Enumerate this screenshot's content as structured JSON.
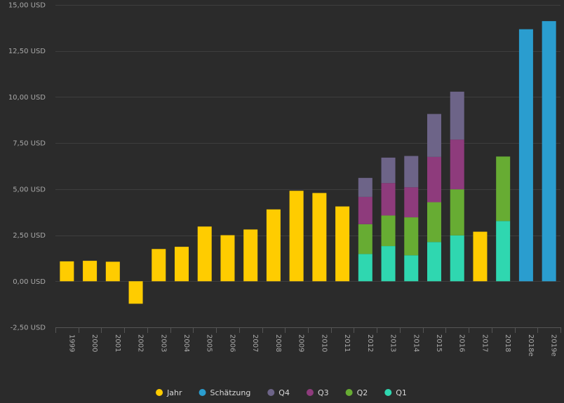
{
  "chart_data": {
    "type": "bar",
    "stacked": true,
    "categories": [
      "1999",
      "2000",
      "2001",
      "2002",
      "2003",
      "2004",
      "2005",
      "2006",
      "2007",
      "2008",
      "2009",
      "2010",
      "2011",
      "2012",
      "2013",
      "2014",
      "2015",
      "2016",
      "2017",
      "2018",
      "2018e",
      "2019e"
    ],
    "ylim": [
      -2.5,
      15
    ],
    "yticks": [
      -2.5,
      0,
      2.5,
      5,
      7.5,
      10,
      12.5,
      15
    ],
    "ytick_labels": [
      "-2,50 USD",
      "0,00 USD",
      "2,50 USD",
      "5,00 USD",
      "7,50 USD",
      "10,00 USD",
      "12,50 USD",
      "15,00 USD"
    ],
    "grid": true,
    "legend_position": "bottom",
    "series": [
      {
        "name": "Jahr",
        "color": "#ffcc00",
        "values": [
          1.08,
          1.11,
          1.06,
          -1.22,
          1.75,
          1.87,
          2.97,
          2.5,
          2.81,
          3.9,
          4.91,
          4.79,
          4.06,
          null,
          null,
          null,
          null,
          null,
          2.69,
          null,
          null,
          null
        ]
      },
      {
        "name": "Schätzung",
        "color": "#2a9dcf",
        "values": [
          null,
          null,
          null,
          null,
          null,
          null,
          null,
          null,
          null,
          null,
          null,
          null,
          null,
          null,
          null,
          null,
          null,
          null,
          null,
          null,
          13.68,
          14.12
        ]
      },
      {
        "name": "Q4",
        "color": "#6d6488",
        "values": [
          null,
          null,
          null,
          null,
          null,
          null,
          null,
          null,
          null,
          null,
          null,
          null,
          null,
          1.03,
          1.38,
          1.7,
          2.33,
          2.6,
          null,
          null,
          null,
          null
        ]
      },
      {
        "name": "Q3",
        "color": "#8e3b7c",
        "values": [
          null,
          null,
          null,
          null,
          null,
          null,
          null,
          null,
          null,
          null,
          null,
          null,
          null,
          1.48,
          1.76,
          1.63,
          2.46,
          2.7,
          null,
          null,
          null,
          null
        ]
      },
      {
        "name": "Q2",
        "color": "#67ac33",
        "values": [
          null,
          null,
          null,
          null,
          null,
          null,
          null,
          null,
          null,
          null,
          null,
          null,
          null,
          1.62,
          1.66,
          2.06,
          2.16,
          2.5,
          null,
          3.5,
          null,
          null
        ]
      },
      {
        "name": "Q1",
        "color": "#2fd7b0",
        "values": [
          null,
          null,
          null,
          null,
          null,
          null,
          null,
          null,
          null,
          null,
          null,
          null,
          null,
          1.48,
          1.91,
          1.41,
          2.13,
          2.49,
          null,
          3.27,
          null,
          null
        ]
      }
    ]
  }
}
